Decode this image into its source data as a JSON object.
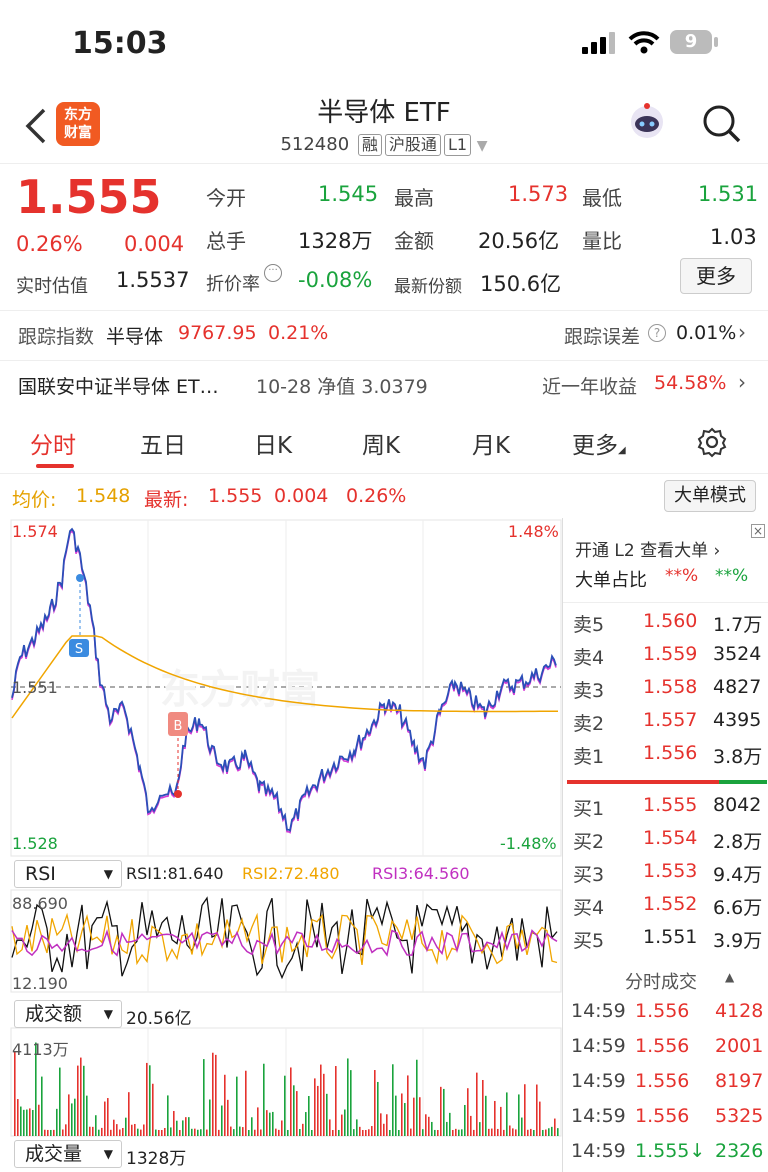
{
  "status": {
    "time": "15:03",
    "battery": "9"
  },
  "nav": {
    "title": "半导体 ETF",
    "code": "512480",
    "tags": [
      "融",
      "沪股通",
      "L1"
    ],
    "logo_text": "东方财富"
  },
  "quote": {
    "price": "1.555",
    "change_pct": "0.26%",
    "change": "0.004",
    "est_label": "实时估值",
    "est_value": "1.5537",
    "open_label": "今开",
    "open": "1.545",
    "high_label": "最高",
    "high": "1.573",
    "low_label": "最低",
    "low": "1.531",
    "vol_label": "总手",
    "vol": "1328万",
    "amount_label": "金额",
    "amount": "20.56亿",
    "ratio_label": "量比",
    "ratio": "1.03",
    "discount_label": "折价率",
    "discount": "-0.08%",
    "shares_label": "最新份额",
    "shares": "150.6亿",
    "more": "更多"
  },
  "track": {
    "label": "跟踪指数",
    "index": "半导体",
    "value": "9767.95",
    "pct": "0.21%",
    "err_label": "跟踪误差",
    "err": "0.01%"
  },
  "fund": {
    "name": "国联安中证半导体 ET…",
    "nav": "10-28 净值 3.0379",
    "ret_label": "近一年收益",
    "ret": "54.58%"
  },
  "tabs": [
    "分时",
    "五日",
    "日K",
    "周K",
    "月K",
    "更多"
  ],
  "info": {
    "avg_label": "均价:",
    "avg": "1.548",
    "last_label": "最新:",
    "last": "1.555",
    "chg": "0.004",
    "pct": "0.26%",
    "mode": "大单模式"
  },
  "chart": {
    "high": "1.574",
    "low": "1.528",
    "prev": "1.551",
    "high_pct": "1.48%",
    "low_pct": "-1.48%",
    "buy_marker": "B",
    "sell_marker": "S"
  },
  "rsi": {
    "label": "RSI",
    "r1": "RSI1:81.640",
    "r2": "RSI2:72.480",
    "r3": "RSI3:64.560",
    "top": "88.690",
    "bottom": "12.190"
  },
  "amount_panel": {
    "label": "成交额",
    "value": "20.56亿",
    "top": "4113万"
  },
  "volume_panel": {
    "label": "成交量",
    "value": "1328万"
  },
  "side": {
    "l2": "开通 L2 查看大单 ›",
    "big_label": "大单占比",
    "big1": "**%",
    "big2": "**%",
    "sells": [
      {
        "label": "卖5",
        "price": "1.560",
        "vol": "1.7万"
      },
      {
        "label": "卖4",
        "price": "1.559",
        "vol": "3524"
      },
      {
        "label": "卖3",
        "price": "1.558",
        "vol": "4827"
      },
      {
        "label": "卖2",
        "price": "1.557",
        "vol": "4395"
      },
      {
        "label": "卖1",
        "price": "1.556",
        "vol": "3.8万"
      }
    ],
    "buys": [
      {
        "label": "买1",
        "price": "1.555",
        "vol": "8042"
      },
      {
        "label": "买2",
        "price": "1.554",
        "vol": "2.8万"
      },
      {
        "label": "买3",
        "price": "1.553",
        "vol": "9.4万"
      },
      {
        "label": "买4",
        "price": "1.552",
        "vol": "6.6万"
      },
      {
        "label": "买5",
        "price": "1.551",
        "vol": "3.9万"
      }
    ],
    "ticks_label": "分时成交",
    "ticks": [
      {
        "time": "14:59",
        "price": "1.556",
        "vol": "4128"
      },
      {
        "time": "14:59",
        "price": "1.556",
        "vol": "2001"
      },
      {
        "time": "14:59",
        "price": "1.556",
        "vol": "8197"
      },
      {
        "time": "14:59",
        "price": "1.556",
        "vol": "5325"
      },
      {
        "time": "14:59",
        "price": "1.555↓",
        "vol": "2326"
      }
    ]
  }
}
